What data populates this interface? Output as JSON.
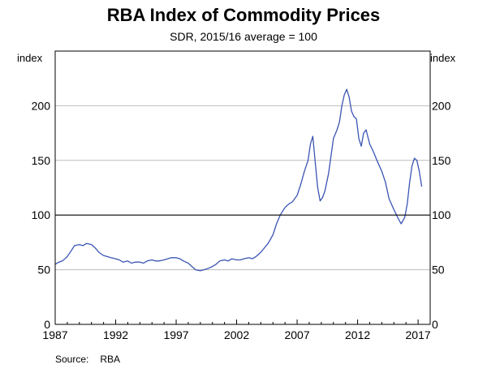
{
  "chart_data": {
    "type": "line",
    "title": "RBA Index of Commodity Prices",
    "subtitle": "SDR, 2015/16 average = 100",
    "ylabel_left": "index",
    "ylabel_right": "index",
    "xlabel": "",
    "xlim": [
      1987,
      2018
    ],
    "ylim": [
      0,
      250
    ],
    "x_ticks": [
      1987,
      1992,
      1997,
      2002,
      2007,
      2012,
      2017
    ],
    "y_ticks": [
      0,
      50,
      100,
      150,
      200
    ],
    "reference_line": 100,
    "grid": true,
    "legend": "none",
    "line_color": "#3a55b4",
    "x": [
      1987.0,
      1987.3,
      1987.6,
      1988.0,
      1988.3,
      1988.6,
      1989.0,
      1989.3,
      1989.6,
      1990.0,
      1990.3,
      1990.6,
      1991.0,
      1991.3,
      1991.6,
      1992.0,
      1992.3,
      1992.6,
      1993.0,
      1993.3,
      1993.6,
      1994.0,
      1994.3,
      1994.6,
      1995.0,
      1995.3,
      1995.6,
      1996.0,
      1996.3,
      1996.6,
      1997.0,
      1997.3,
      1997.6,
      1998.0,
      1998.3,
      1998.6,
      1999.0,
      1999.3,
      1999.6,
      2000.0,
      2000.3,
      2000.6,
      2001.0,
      2001.3,
      2001.6,
      2002.0,
      2002.3,
      2002.6,
      2003.0,
      2003.3,
      2003.6,
      2004.0,
      2004.3,
      2004.6,
      2005.0,
      2005.3,
      2005.6,
      2006.0,
      2006.3,
      2006.6,
      2007.0,
      2007.3,
      2007.6,
      2007.9,
      2008.1,
      2008.3,
      2008.5,
      2008.7,
      2008.9,
      2009.1,
      2009.3,
      2009.6,
      2010.0,
      2010.3,
      2010.5,
      2010.7,
      2010.9,
      2011.1,
      2011.3,
      2011.5,
      2011.7,
      2011.9,
      2012.1,
      2012.3,
      2012.5,
      2012.7,
      2013.0,
      2013.3,
      2013.6,
      2014.0,
      2014.3,
      2014.6,
      2015.0,
      2015.3,
      2015.6,
      2015.9,
      2016.1,
      2016.3,
      2016.5,
      2016.7,
      2016.9,
      2017.1,
      2017.3
    ],
    "values": [
      55,
      57,
      58,
      62,
      67,
      72,
      73,
      72,
      74,
      73,
      70,
      66,
      63,
      62,
      61,
      60,
      59,
      57,
      58,
      56,
      57,
      57,
      56,
      58,
      59,
      58,
      58,
      59,
      60,
      61,
      61,
      60,
      58,
      56,
      53,
      50,
      49,
      50,
      51,
      53,
      55,
      58,
      59,
      58,
      60,
      59,
      59,
      60,
      61,
      60,
      62,
      66,
      70,
      74,
      82,
      92,
      100,
      107,
      110,
      112,
      118,
      128,
      140,
      150,
      165,
      172,
      148,
      125,
      113,
      116,
      122,
      138,
      170,
      178,
      185,
      200,
      210,
      215,
      208,
      195,
      190,
      188,
      170,
      163,
      175,
      178,
      165,
      158,
      150,
      140,
      130,
      115,
      105,
      98,
      92,
      98,
      110,
      130,
      145,
      152,
      150,
      140,
      126
    ]
  },
  "source": {
    "label": "Source:",
    "value": "RBA"
  }
}
